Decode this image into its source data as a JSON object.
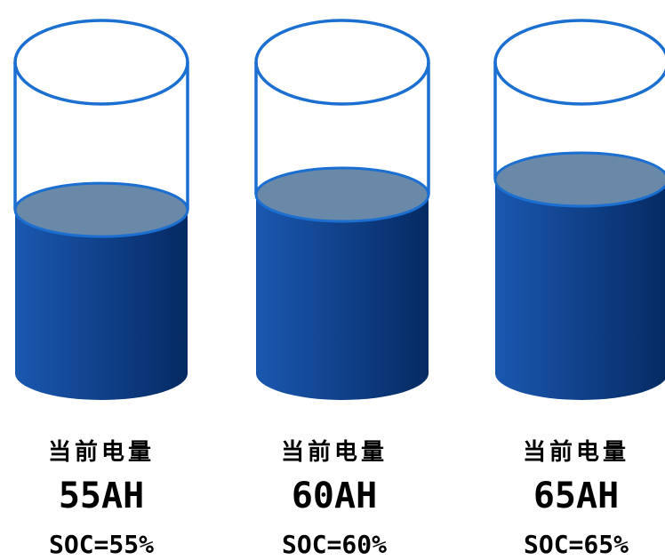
{
  "cylinders": [
    {
      "title": "当前电量",
      "capacity": "55AH",
      "soc": "SOC=55%",
      "level": 0.55
    },
    {
      "title": "当前电量",
      "capacity": "60AH",
      "soc": "SOC=60%",
      "level": 0.6
    },
    {
      "title": "当前电量",
      "capacity": "65AH",
      "soc": "SOC=65%",
      "level": 0.65
    }
  ],
  "colors": {
    "outline": "#1a6fd1",
    "liquid_light": "#1a58b0",
    "liquid_dark": "#062a63",
    "liquid_top": "#6a88a8"
  }
}
